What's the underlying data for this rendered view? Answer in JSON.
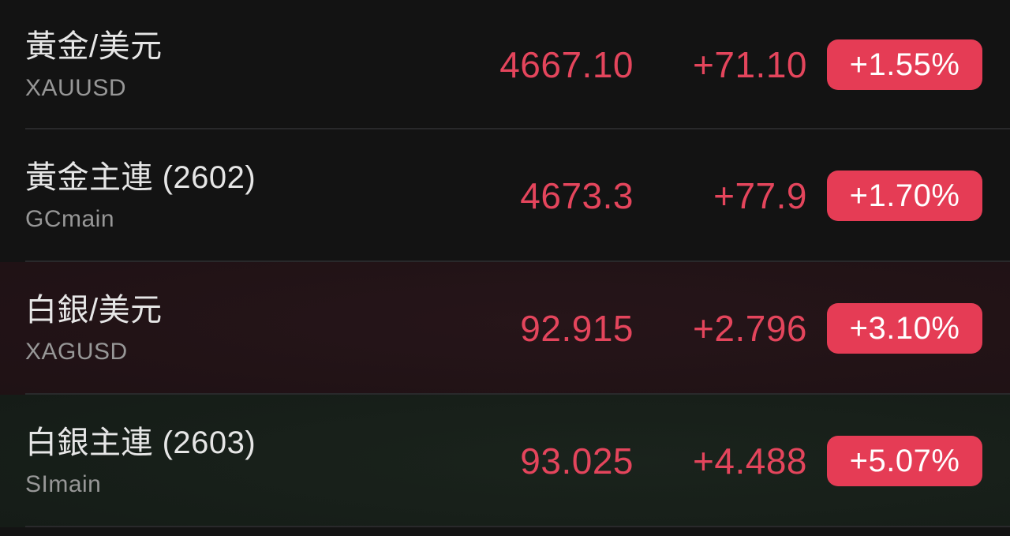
{
  "colors": {
    "background": "#131313",
    "up_red_text": "#e4455c",
    "badge_background": "#e53c55",
    "badge_text": "#ffffff",
    "title_text": "#e6e6e6",
    "symbol_text": "#979797",
    "divider": "#29292b",
    "row_red_flash_tint": "#261519",
    "row_green_flash_tint": "#1a231c"
  },
  "list": {
    "rows": [
      {
        "name": "黃金/美元",
        "symbol": "XAUUSD",
        "price": "4667.10",
        "change": "+71.10",
        "change_pct": "+1.55%"
      },
      {
        "name": "黃金主連 (2602)",
        "symbol": "GCmain",
        "price": "4673.3",
        "change": "+77.9",
        "change_pct": "+1.70%"
      },
      {
        "name": "白銀/美元",
        "symbol": "XAGUSD",
        "price": "92.915",
        "change": "+2.796",
        "change_pct": "+3.10%"
      },
      {
        "name": "白銀主連 (2603)",
        "symbol": "SImain",
        "price": "93.025",
        "change": "+4.488",
        "change_pct": "+5.07%"
      }
    ]
  }
}
